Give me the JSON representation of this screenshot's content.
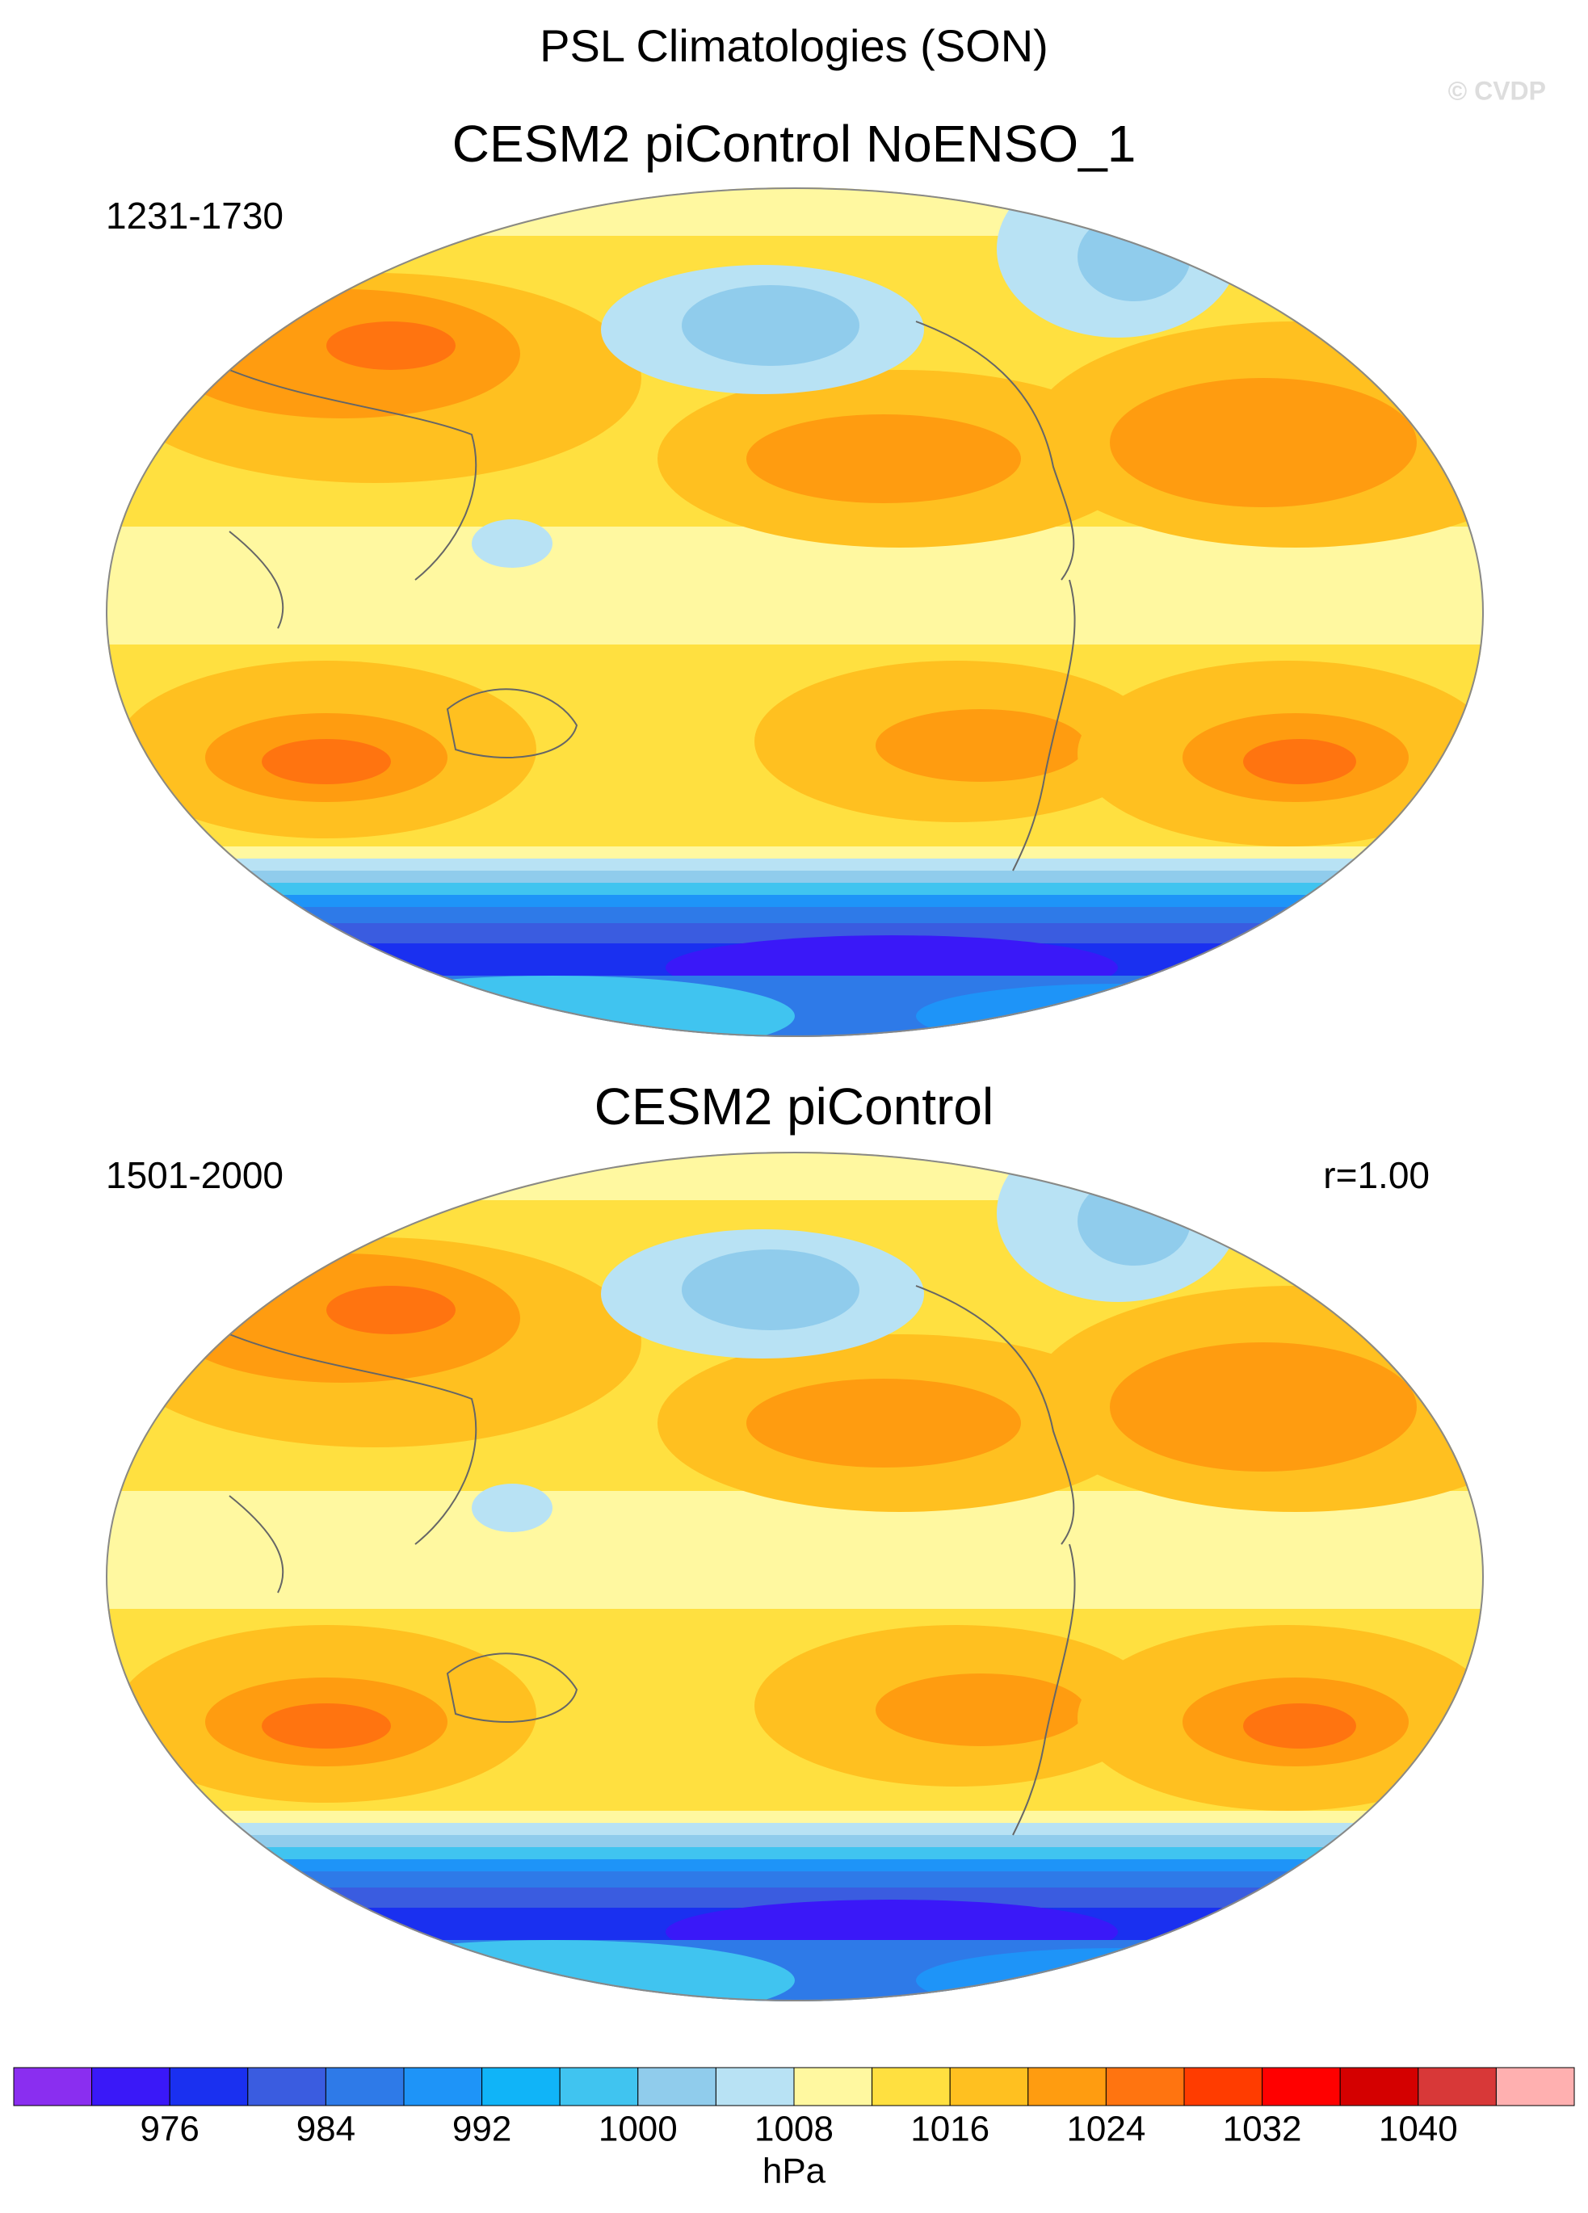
{
  "chart_data": {
    "type": "map",
    "title": "PSL Climatologies (SON)",
    "watermark": "© CVDP",
    "panels": [
      {
        "title": "CESM2 piControl NoENSO_1",
        "years": "1231-1730"
      },
      {
        "title": "CESM2 piControl",
        "years": "1501-2000",
        "r": "r=1.00"
      }
    ],
    "colorbar": {
      "colors": [
        "#8a2ef0",
        "#3a18f8",
        "#1a30f0",
        "#3a5ce0",
        "#2e7ae8",
        "#1e94f8",
        "#10b4f8",
        "#40c4f0",
        "#90ccec",
        "#b8e2f4",
        "#fff8a0",
        "#ffe040",
        "#ffc020",
        "#ff9c10",
        "#ff7410",
        "#ff3c00",
        "#ff0000",
        "#d40000",
        "#d83838",
        "#ffb0b0"
      ],
      "xlim": [
        968,
        1048
      ],
      "xticks": [
        976,
        984,
        992,
        1000,
        1008,
        1016,
        1024,
        1032,
        1040
      ],
      "units": "hPa"
    }
  }
}
